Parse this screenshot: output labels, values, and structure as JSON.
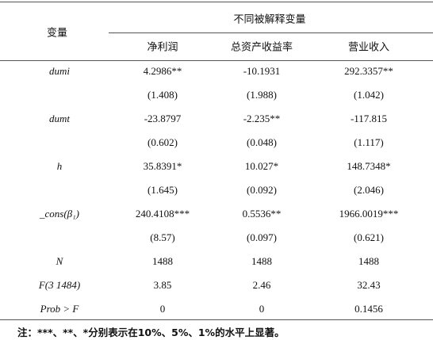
{
  "table": {
    "header": {
      "row_label": "变量",
      "group": "不同被解释变量",
      "columns": [
        "净利润",
        "总资产收益率",
        "营业收入"
      ]
    },
    "rows": [
      {
        "label": "dumi",
        "values": [
          "4.2986**",
          "-10.1931",
          "292.3357**"
        ]
      },
      {
        "values": [
          "(1.408)",
          "(1.988)",
          "(1.042)"
        ]
      },
      {
        "label": "dumt",
        "values": [
          "-23.8797",
          "-2.235**",
          "-117.815"
        ]
      },
      {
        "values": [
          "(0.602)",
          "(0.048)",
          "(1.117)"
        ]
      },
      {
        "label": "h",
        "values": [
          "35.8391*",
          "10.027*",
          "148.7348*"
        ]
      },
      {
        "values": [
          "(1.645)",
          "(0.092)",
          "(2.046)"
        ]
      },
      {
        "label": "_cons(β₁)",
        "values": [
          "240.4108***",
          "0.5536**",
          "1966.0019***"
        ]
      },
      {
        "values": [
          "(8.57)",
          "(0.097)",
          "(0.621)"
        ]
      },
      {
        "label": "N",
        "values": [
          "1488",
          "1488",
          "1488"
        ]
      },
      {
        "label": "F(3 1484)",
        "values": [
          "3.85",
          "2.46",
          "32.43"
        ]
      },
      {
        "label": "Prob > F",
        "values": [
          "0",
          "0",
          "0.1456"
        ]
      }
    ],
    "note": "注：***、**、*分别表示在10%、5%、1%的水平上显著。"
  }
}
